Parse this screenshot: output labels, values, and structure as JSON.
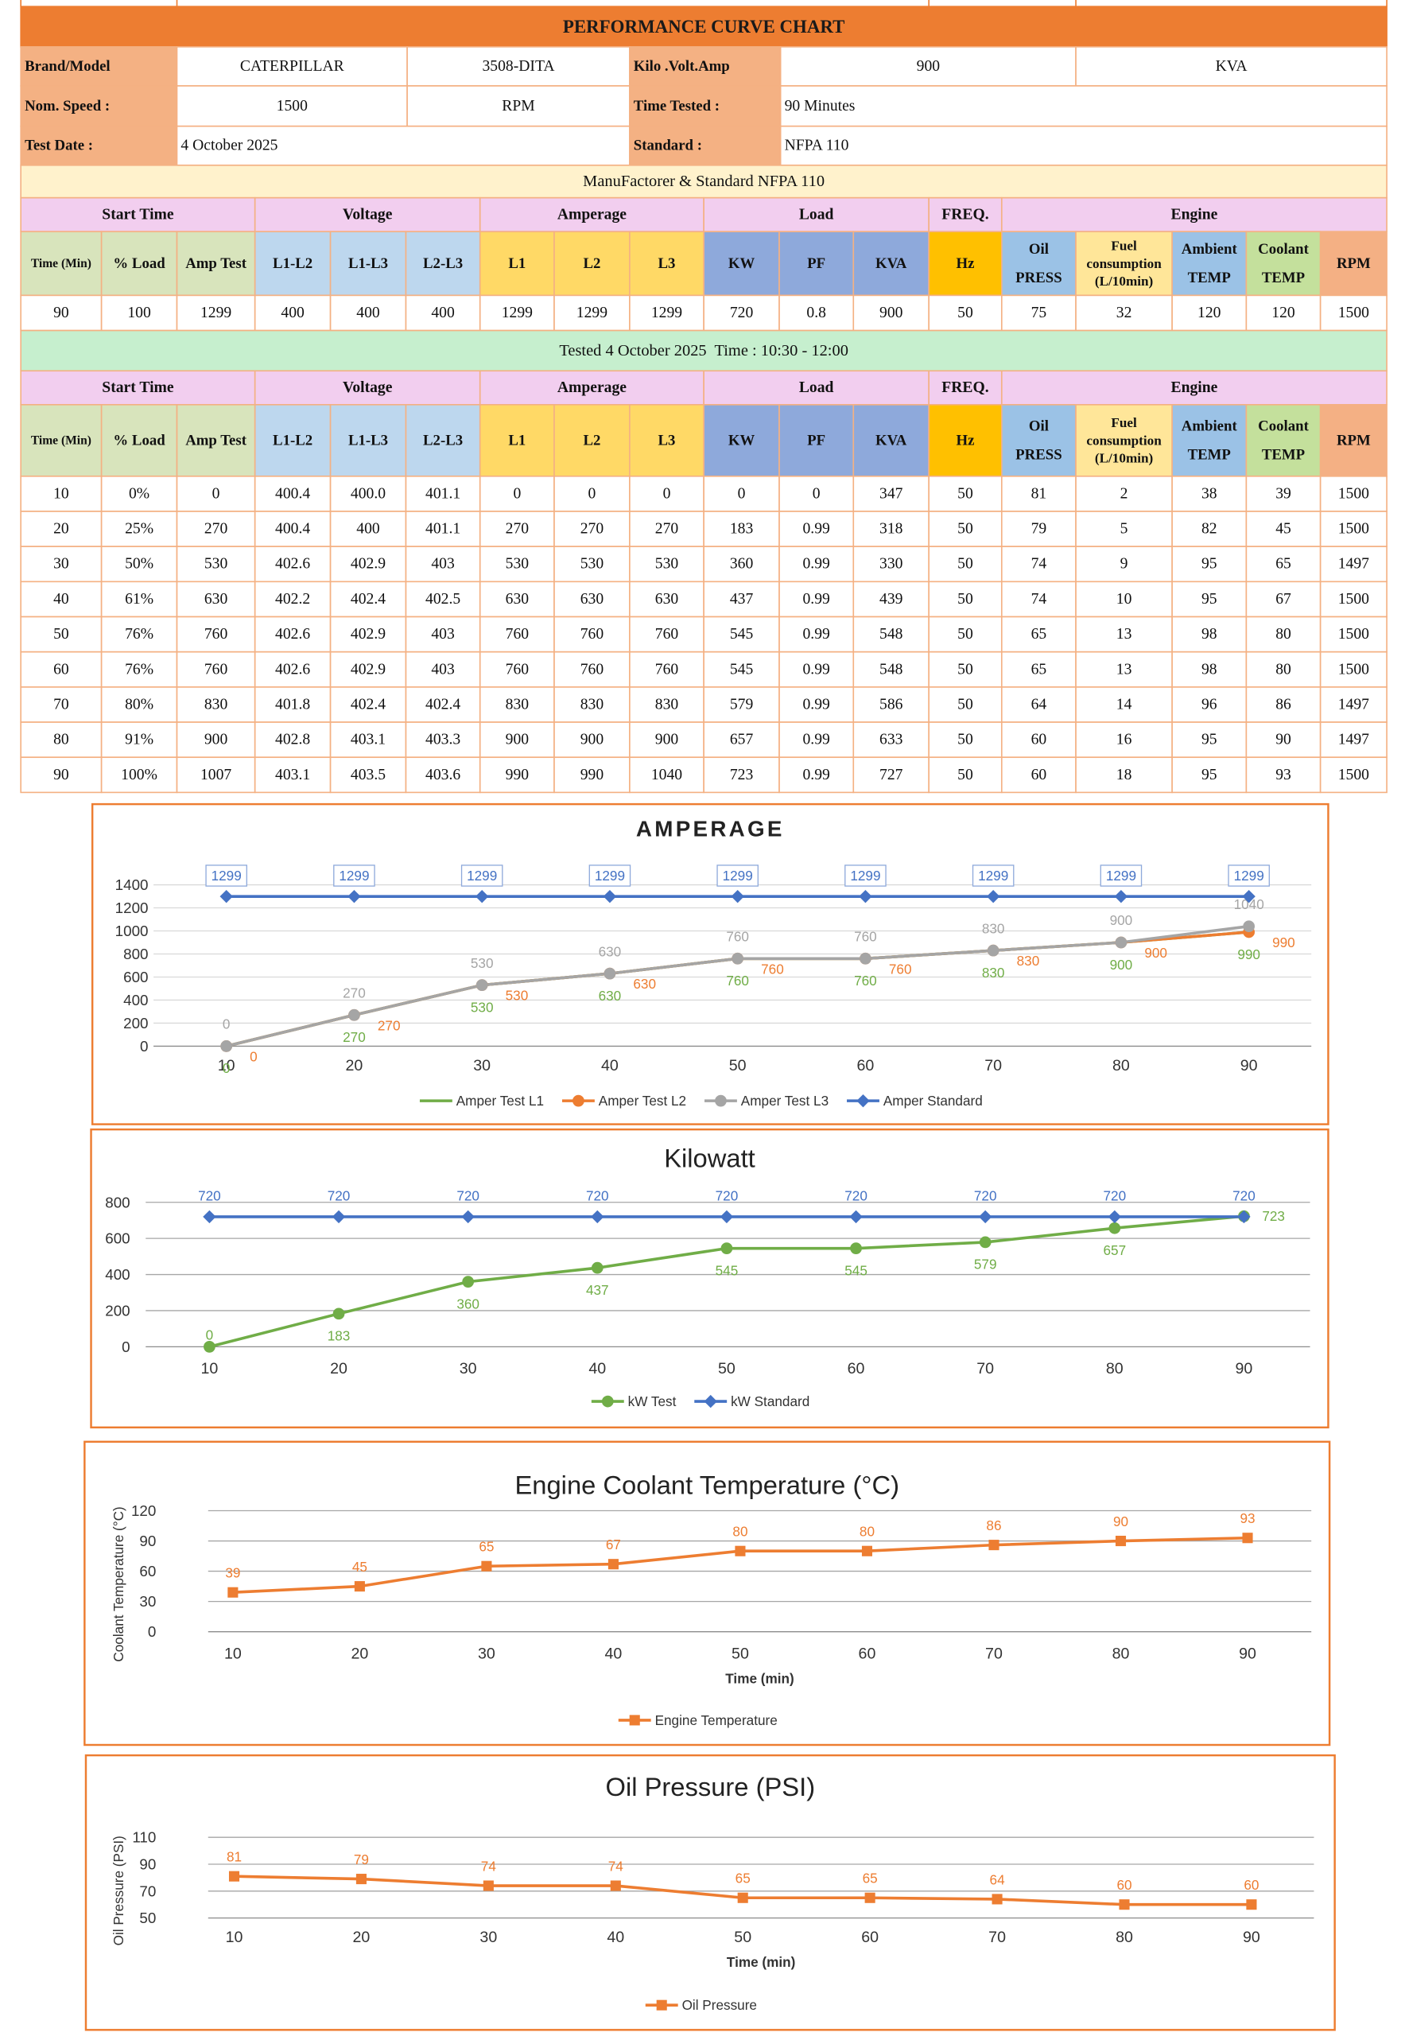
{
  "header": {
    "title": "PERFORMANCE CURVE CHART",
    "rows": [
      [
        "Brand/Model",
        "CATERPILLAR",
        "3508-DITA",
        "Kilo .Volt.Amp",
        "900",
        "KVA"
      ],
      [
        "Nom. Speed :",
        "1500",
        "RPM",
        "Time Tested :",
        "90 Minutes"
      ],
      [
        "Test Date :",
        "4 October 2025",
        "Standard :",
        "NFPA 110"
      ]
    ],
    "note": "ManuFactorer & Standard NFPA 110"
  },
  "tables": [
    {
      "groups": [
        "Start Time",
        "Voltage",
        "Amperage",
        "Load",
        "FREQ.",
        "Engine"
      ],
      "columns": [
        [
          "Time (Min)"
        ],
        [
          "% Load"
        ],
        [
          "Amp Test"
        ],
        [
          "L1-L2"
        ],
        [
          "L1-L3"
        ],
        [
          "L2-L3"
        ],
        [
          "L1"
        ],
        [
          "L2"
        ],
        [
          "L3"
        ],
        [
          "KW"
        ],
        [
          "PF"
        ],
        [
          "KVA"
        ],
        [
          "Hz"
        ],
        [
          "Oil",
          "PRESS"
        ],
        [
          "Fuel",
          "consumption",
          "(L/10min)"
        ],
        [
          "Ambient",
          "TEMP"
        ],
        [
          "Coolant",
          "TEMP"
        ],
        [
          "RPM"
        ]
      ],
      "rows": [
        [
          "90",
          "100",
          "1299",
          "400",
          "400",
          "400",
          "1299",
          "1299",
          "1299",
          "720",
          "0.8",
          "900",
          "50",
          "75",
          "32",
          "120",
          "120",
          "1500"
        ]
      ]
    },
    {
      "caption": "Tested 4 October 2025  Time : 10:30 - 12:00",
      "groups": [
        "Start Time",
        "Voltage",
        "Amperage",
        "Load",
        "FREQ.",
        "Engine"
      ],
      "columns": [
        [
          "Time (Min)"
        ],
        [
          "% Load"
        ],
        [
          "Amp Test"
        ],
        [
          "L1-L2"
        ],
        [
          "L1-L3"
        ],
        [
          "L2-L3"
        ],
        [
          "L1"
        ],
        [
          "L2"
        ],
        [
          "L3"
        ],
        [
          "KW"
        ],
        [
          "PF"
        ],
        [
          "KVA"
        ],
        [
          "Hz"
        ],
        [
          "Oil",
          "PRESS"
        ],
        [
          "Fuel",
          "consumption",
          "(L/10min)"
        ],
        [
          "Ambient",
          "TEMP"
        ],
        [
          "Coolant",
          "TEMP"
        ],
        [
          "RPM"
        ]
      ],
      "rows": [
        [
          "10",
          "0%",
          "0",
          "400.4",
          "400.0",
          "401.1",
          "0",
          "0",
          "0",
          "0",
          "0",
          "347",
          "50",
          "81",
          "2",
          "38",
          "39",
          "1500"
        ],
        [
          "20",
          "25%",
          "270",
          "400.4",
          "400",
          "401.1",
          "270",
          "270",
          "270",
          "183",
          "0.99",
          "318",
          "50",
          "79",
          "5",
          "82",
          "45",
          "1500"
        ],
        [
          "30",
          "50%",
          "530",
          "402.6",
          "402.9",
          "403",
          "530",
          "530",
          "530",
          "360",
          "0.99",
          "330",
          "50",
          "74",
          "9",
          "95",
          "65",
          "1497"
        ],
        [
          "40",
          "61%",
          "630",
          "402.2",
          "402.4",
          "402.5",
          "630",
          "630",
          "630",
          "437",
          "0.99",
          "439",
          "50",
          "74",
          "10",
          "95",
          "67",
          "1500"
        ],
        [
          "50",
          "76%",
          "760",
          "402.6",
          "402.9",
          "403",
          "760",
          "760",
          "760",
          "545",
          "0.99",
          "548",
          "50",
          "65",
          "13",
          "98",
          "80",
          "1500"
        ],
        [
          "60",
          "76%",
          "760",
          "402.6",
          "402.9",
          "403",
          "760",
          "760",
          "760",
          "545",
          "0.99",
          "548",
          "50",
          "65",
          "13",
          "98",
          "80",
          "1500"
        ],
        [
          "70",
          "80%",
          "830",
          "401.8",
          "402.4",
          "402.4",
          "830",
          "830",
          "830",
          "579",
          "0.99",
          "586",
          "50",
          "64",
          "14",
          "96",
          "86",
          "1497"
        ],
        [
          "80",
          "91%",
          "900",
          "402.8",
          "403.1",
          "403.3",
          "900",
          "900",
          "900",
          "657",
          "0.99",
          "633",
          "50",
          "60",
          "16",
          "95",
          "90",
          "1497"
        ],
        [
          "90",
          "100%",
          "1007",
          "403.1",
          "403.5",
          "403.6",
          "990",
          "990",
          "1040",
          "723",
          "0.99",
          "727",
          "50",
          "60",
          "18",
          "95",
          "93",
          "1500"
        ]
      ]
    }
  ],
  "chart_data": [
    {
      "type": "line",
      "title": "AMPERAGE",
      "categories": [
        10,
        20,
        30,
        40,
        50,
        60,
        70,
        80,
        90
      ],
      "ylim": [
        0,
        1400
      ],
      "yticks": [
        0,
        200,
        400,
        600,
        800,
        1000,
        1200,
        1400
      ],
      "grid": true,
      "series": [
        {
          "name": "Amper Test L1",
          "color": "#70AD47",
          "marker": "none",
          "values": [
            0,
            270,
            530,
            630,
            760,
            760,
            830,
            900,
            990
          ]
        },
        {
          "name": "Amper Test L2",
          "color": "#ED7D31",
          "marker": "circle",
          "values": [
            0,
            270,
            530,
            630,
            760,
            760,
            830,
            900,
            990
          ]
        },
        {
          "name": "Amper Test L3",
          "color": "#A5A5A5",
          "marker": "circle",
          "values": [
            0,
            270,
            530,
            630,
            760,
            760,
            830,
            900,
            1040
          ]
        },
        {
          "name": "Amper Standard",
          "color": "#4472C4",
          "marker": "diamond",
          "values": [
            1299,
            1299,
            1299,
            1299,
            1299,
            1299,
            1299,
            1299,
            1299
          ]
        }
      ]
    },
    {
      "type": "line",
      "title": "Kilowatt",
      "categories": [
        10,
        20,
        30,
        40,
        50,
        60,
        70,
        80,
        90
      ],
      "ylim": [
        0,
        800
      ],
      "yticks": [
        0,
        200,
        400,
        600,
        800
      ],
      "grid": true,
      "series": [
        {
          "name": "kW Test",
          "color": "#70AD47",
          "marker": "circle",
          "values": [
            0,
            183,
            360,
            437,
            545,
            545,
            579,
            657,
            723
          ]
        },
        {
          "name": "kW Standard",
          "color": "#4472C4",
          "marker": "diamond",
          "values": [
            720,
            720,
            720,
            720,
            720,
            720,
            720,
            720,
            720
          ]
        }
      ]
    },
    {
      "type": "line",
      "title": "Engine Coolant Temperature (°C)",
      "x_label": "Time (min)",
      "y_label": "Coolant Temperature (°C)",
      "categories": [
        10,
        20,
        30,
        40,
        50,
        60,
        70,
        80,
        90
      ],
      "ylim": [
        0,
        120
      ],
      "yticks": [
        0,
        30,
        60,
        90,
        120
      ],
      "grid": true,
      "series": [
        {
          "name": "Engine Temperature",
          "color": "#ED7D31",
          "marker": "square",
          "values": [
            39,
            45,
            65,
            67,
            80,
            80,
            86,
            90,
            93
          ]
        }
      ]
    },
    {
      "type": "line",
      "title": "Oil Pressure (PSI)",
      "x_label": "Time (min)",
      "y_label": "Oil Pressure (PSI)",
      "categories": [
        10,
        20,
        30,
        40,
        50,
        60,
        70,
        80,
        90
      ],
      "ylim": [
        50,
        110
      ],
      "yticks": [
        50,
        70,
        90,
        110
      ],
      "grid": true,
      "series": [
        {
          "name": "Oil Pressure",
          "color": "#ED7D31",
          "marker": "square",
          "values": [
            81,
            79,
            74,
            74,
            65,
            65,
            64,
            60,
            60
          ]
        }
      ]
    }
  ]
}
